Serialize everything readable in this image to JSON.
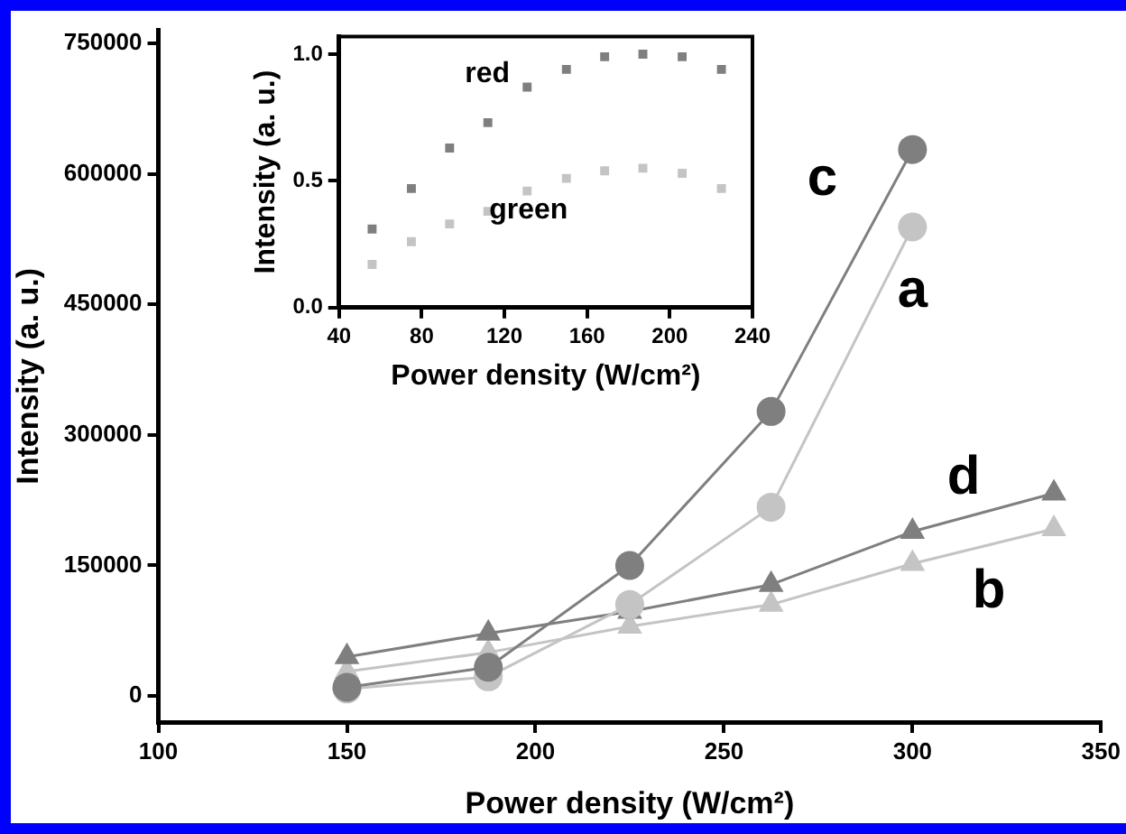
{
  "chart_data": [
    {
      "type": "line",
      "xlabel": "Power density (W/cm²)",
      "ylabel": "Intensity (a. u.)",
      "xlim": [
        100,
        350
      ],
      "xticks": [
        100,
        150,
        200,
        250,
        300,
        350
      ],
      "ylim": [
        -30000,
        765000
      ],
      "yticks": [
        0,
        150000,
        300000,
        450000,
        600000,
        750000
      ],
      "grid": false,
      "legend": false,
      "line_style": "solid",
      "series": [
        {
          "name": "c",
          "color": "#7f7f7f",
          "marker": "circle",
          "x": [
            150,
            187.5,
            225,
            262.5,
            300
          ],
          "values": [
            10000,
            33000,
            150000,
            327000,
            628000
          ]
        },
        {
          "name": "a",
          "color": "#c4c4c4",
          "marker": "circle",
          "x": [
            150,
            187.5,
            225,
            262.5,
            300
          ],
          "values": [
            8000,
            22000,
            105000,
            217000,
            539000
          ]
        },
        {
          "name": "d",
          "color": "#7f7f7f",
          "marker": "triangle",
          "x": [
            150,
            187.5,
            225,
            262.5,
            300,
            337.5
          ],
          "values": [
            45000,
            72000,
            97000,
            128000,
            189000,
            233000
          ]
        },
        {
          "name": "b",
          "color": "#c4c4c4",
          "marker": "triangle",
          "x": [
            150,
            187.5,
            225,
            262.5,
            300,
            337.5
          ],
          "values": [
            28000,
            50000,
            80000,
            105000,
            152000,
            192000
          ]
        }
      ]
    },
    {
      "type": "scatter",
      "xlabel": "Power density (W/cm²)",
      "ylabel": "Intensity (a. u.)",
      "xlim": [
        40,
        240
      ],
      "xticks": [
        40,
        80,
        120,
        160,
        200,
        240
      ],
      "ylim": [
        0,
        1.07
      ],
      "yticks": [
        {
          "value": 0,
          "label": "0.0"
        },
        {
          "value": 0.5,
          "label": "0.5"
        },
        {
          "value": 1,
          "label": "1.0"
        }
      ],
      "grid": false,
      "legend": false,
      "marker": "square",
      "series": [
        {
          "name": "red",
          "color": "#7f7f7f",
          "x": [
            56,
            75,
            93.5,
            112,
            131,
            150,
            168.5,
            187,
            206,
            225
          ],
          "values": [
            0.31,
            0.47,
            0.63,
            0.73,
            0.87,
            0.94,
            0.99,
            1.0,
            0.99,
            0.94
          ]
        },
        {
          "name": "green",
          "color": "#c4c4c4",
          "x": [
            56,
            75,
            93.5,
            112,
            131,
            150,
            168.5,
            187,
            206,
            225
          ],
          "values": [
            0.17,
            0.26,
            0.33,
            0.38,
            0.46,
            0.51,
            0.54,
            0.55,
            0.53,
            0.47
          ]
        }
      ]
    }
  ]
}
